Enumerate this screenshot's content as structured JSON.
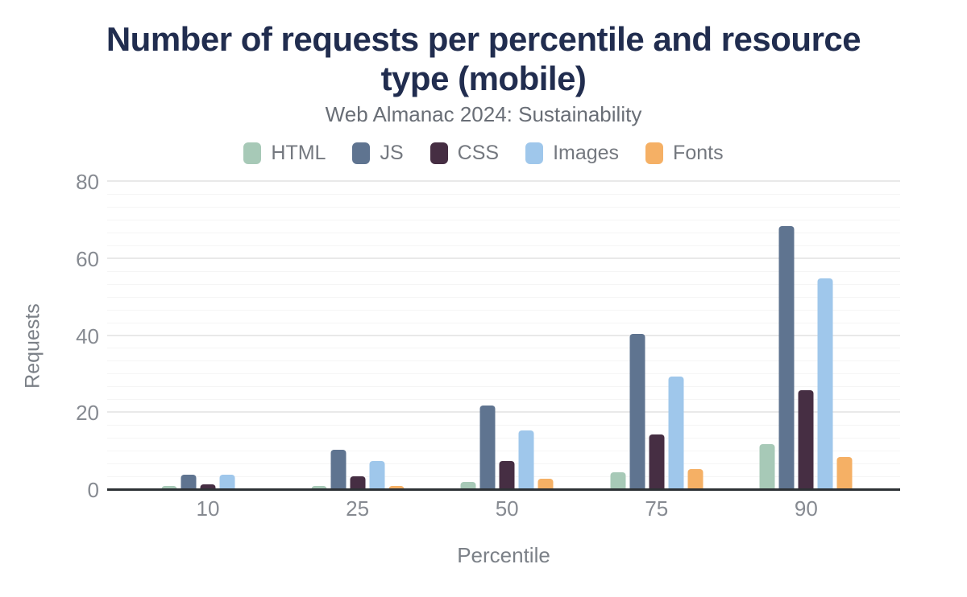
{
  "header": {
    "title_line1": "Number of requests per percentile and resource",
    "title_line2": "type (mobile)",
    "subtitle": "Web Almanac 2024: Sustainability"
  },
  "colors": {
    "background": "#ffffff",
    "title_text": "#212d4f",
    "subtitle_text": "#696e76",
    "axis_text": "#868a91",
    "axis_line": "#2d3135",
    "gridline_major": "#e9e9e9",
    "gridline_minor": "#f5f5f5"
  },
  "chart_data": {
    "type": "bar",
    "title": "Number of requests per percentile and resource type (mobile)",
    "subtitle": "Web Almanac 2024: Sustainability",
    "categories": [
      "10",
      "25",
      "50",
      "75",
      "90"
    ],
    "series": [
      {
        "name": "HTML",
        "color": "#a7c9b7",
        "values": [
          1,
          1,
          2,
          4.5,
          12
        ]
      },
      {
        "name": "JS",
        "color": "#5f7490",
        "values": [
          4,
          10.5,
          22,
          40.5,
          68.5
        ]
      },
      {
        "name": "CSS",
        "color": "#462e43",
        "values": [
          1.5,
          3.5,
          7.5,
          14.5,
          26
        ]
      },
      {
        "name": "Images",
        "color": "#9fc7eb",
        "values": [
          4,
          7.5,
          15.5,
          29.5,
          55
        ]
      },
      {
        "name": "Fonts",
        "color": "#f5b065",
        "values": [
          0,
          1,
          3,
          5.5,
          8.5
        ]
      }
    ],
    "xlabel": "Percentile",
    "ylabel": "Requests",
    "ylim": [
      0,
      80
    ],
    "yticks": [
      0,
      20,
      40,
      60,
      80
    ],
    "y_minor_divisions_per_major": 6,
    "grid": true,
    "legend_position": "top",
    "bar_style": "rounded-top"
  }
}
